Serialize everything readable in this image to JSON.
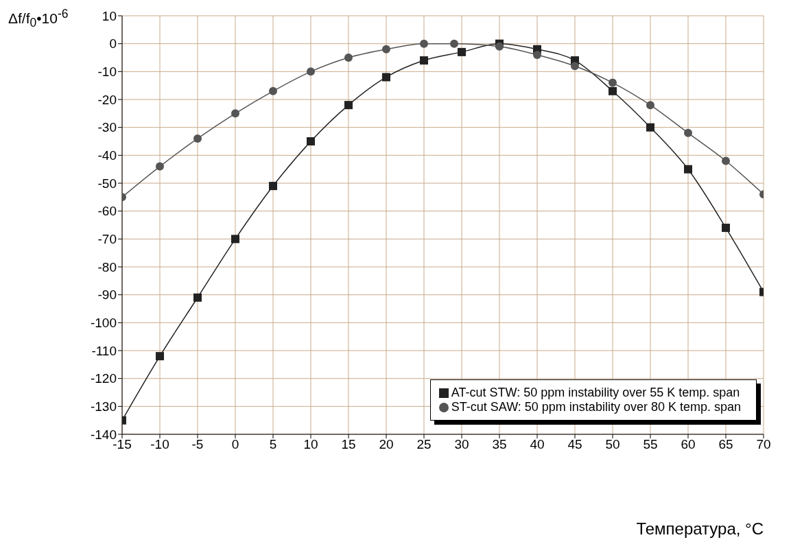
{
  "chart_data": {
    "type": "line",
    "xlabel": "Температура, °C",
    "ylabel": "Δf/f$_{0}$•10$^{-6}$",
    "xlim": [
      -15,
      70
    ],
    "xticks": [
      -15,
      -10,
      -5,
      0,
      5,
      10,
      15,
      20,
      25,
      30,
      35,
      40,
      45,
      50,
      55,
      60,
      65,
      70
    ],
    "ylim": [
      -140,
      10
    ],
    "yticks": [
      -140,
      -130,
      -120,
      -110,
      -100,
      -90,
      -80,
      -70,
      -60,
      -50,
      -40,
      -30,
      -20,
      -10,
      0,
      10
    ],
    "grid": true,
    "legend": "bottom right",
    "line_style": "solid",
    "series": [
      {
        "name": "AT-cut STW:  50 ppm instability over 55 K temp. span",
        "color": "#222222",
        "marker": "square",
        "x": [
          -15,
          -10,
          -5,
          0,
          5,
          10,
          15,
          20,
          25,
          30,
          35,
          40,
          45,
          50,
          55,
          60,
          65,
          70
        ],
        "values": [
          -135,
          -112,
          -91,
          -70,
          -51,
          -35,
          -22,
          -12,
          -6,
          -3,
          0,
          -2,
          -6,
          -17,
          -30,
          -45,
          -66,
          -89
        ]
      },
      {
        "name": "ST-cut SAW:  50 ppm instability over 80 K temp. span",
        "color": "#555555",
        "marker": "circle",
        "x": [
          -15,
          -10,
          -5,
          0,
          5,
          10,
          15,
          20,
          25,
          29,
          35,
          40,
          45,
          50,
          55,
          60,
          65,
          70
        ],
        "values": [
          -55,
          -44,
          -34,
          -25,
          -17,
          -10,
          -5,
          -2,
          0,
          0,
          -1,
          -4,
          -8,
          -14,
          -22,
          -32,
          -42,
          -54
        ]
      }
    ]
  }
}
